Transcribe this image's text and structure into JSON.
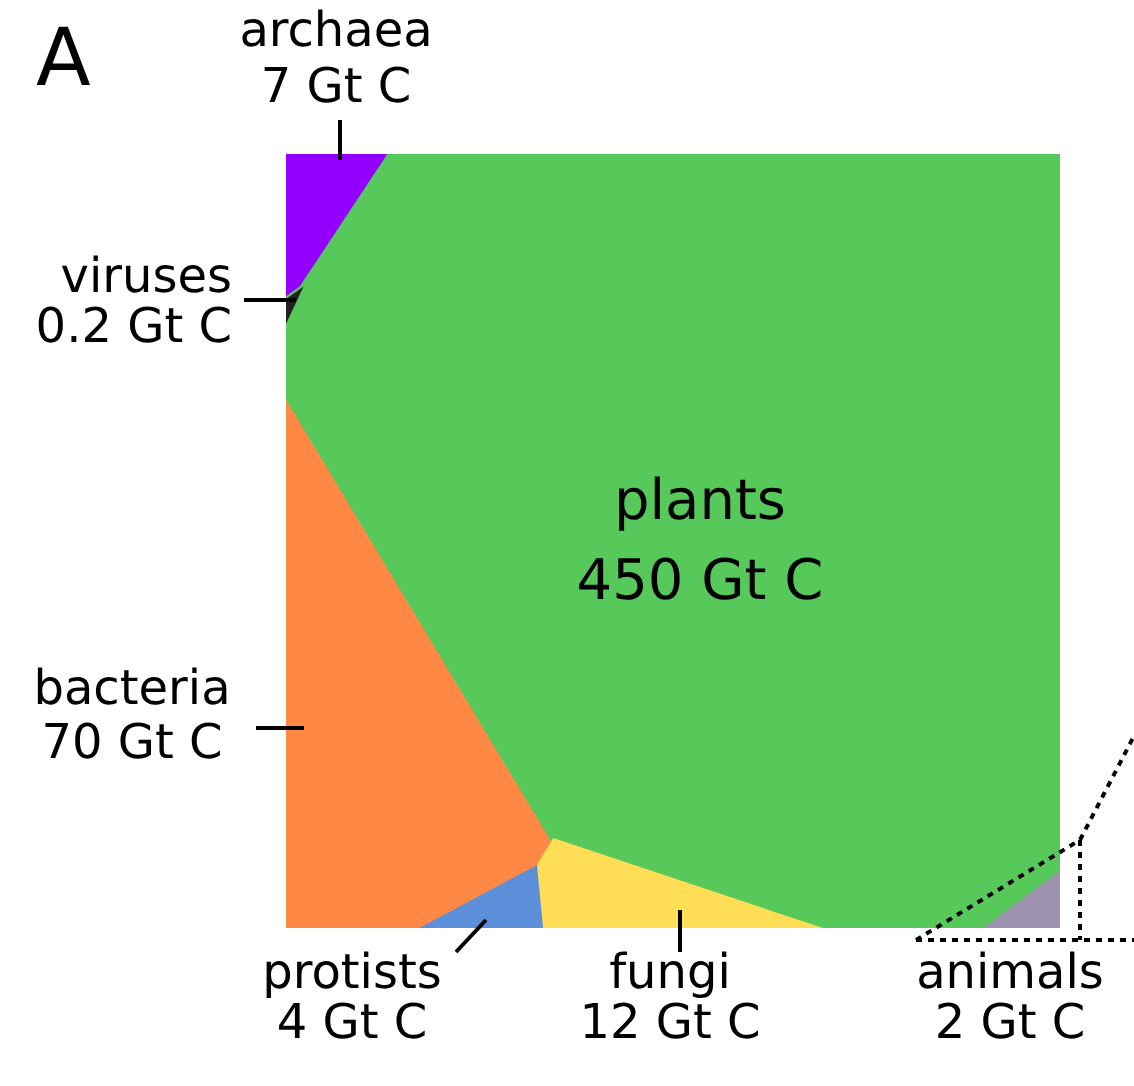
{
  "chart_data": {
    "type": "other",
    "annotations": [
      "A"
    ],
    "categories": [
      "archaea",
      "viruses",
      "bacteria",
      "protists",
      "fungi",
      "plants",
      "animals"
    ],
    "values": [
      7,
      0.2,
      70,
      4,
      12,
      450,
      2
    ],
    "value_labels": [
      "7 Gt C",
      "0.2 Gt C",
      "70 Gt C",
      "4 Gt C",
      "12 Gt C",
      "450 Gt C",
      "2 Gt C"
    ],
    "colors": [
      "#9400ff",
      "#222222",
      "#ff8844",
      "#5b8fd9",
      "#ffdd55",
      "#57c85a",
      "#9e94b0"
    ]
  }
}
